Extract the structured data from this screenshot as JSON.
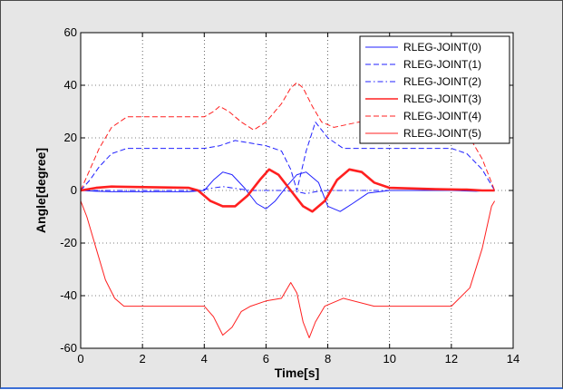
{
  "chart_data": {
    "type": "line",
    "title": "",
    "xlabel": "Time[s]",
    "ylabel": "Angle[degree]",
    "xlim": [
      0,
      14
    ],
    "ylim": [
      -60,
      60
    ],
    "xticks": [
      0,
      2,
      4,
      6,
      8,
      10,
      12,
      14
    ],
    "yticks": [
      -60,
      -40,
      -20,
      0,
      20,
      40,
      60
    ],
    "grid": true,
    "legend_position": "top-right",
    "series": [
      {
        "name": "RLEG-JOINT(0)",
        "color": "#2020ff",
        "style": "solid",
        "width": 1.0,
        "x": [
          0,
          0.5,
          1,
          3.5,
          4.0,
          4.3,
          4.6,
          4.9,
          5.3,
          5.7,
          6.0,
          6.3,
          6.7,
          7.0,
          7.3,
          7.7,
          8.0,
          8.4,
          8.8,
          9.3,
          10,
          12,
          12.8,
          13.2,
          13.4
        ],
        "y": [
          0,
          -0.3,
          -0.5,
          -0.5,
          0,
          4,
          7,
          6,
          1,
          -5,
          -7,
          -4,
          2,
          6,
          7,
          3,
          -6,
          -8,
          -5,
          -1,
          0,
          0,
          -0.3,
          0,
          0
        ]
      },
      {
        "name": "RLEG-JOINT(1)",
        "color": "#2020ff",
        "style": "dashed",
        "width": 1.0,
        "x": [
          0,
          0.3,
          0.6,
          1.0,
          1.5,
          4.0,
          4.5,
          5.0,
          5.5,
          6.0,
          6.5,
          6.8,
          7.0,
          7.3,
          7.6,
          8.0,
          8.5,
          9.0,
          12.0,
          12.5,
          13.0,
          13.4
        ],
        "y": [
          0,
          4,
          9,
          14,
          16,
          16,
          17,
          19,
          18,
          17,
          15,
          8,
          0,
          15,
          26,
          20,
          16,
          16,
          16,
          14,
          8,
          0
        ]
      },
      {
        "name": "RLEG-JOINT(2)",
        "color": "#2020ff",
        "style": "dashdot",
        "width": 1.0,
        "x": [
          0,
          0.5,
          3.8,
          4.2,
          4.6,
          5.0,
          5.5,
          6.5,
          7.0,
          7.3,
          7.6,
          8.0,
          9.0,
          13.0,
          13.4
        ],
        "y": [
          0,
          0,
          0,
          0.8,
          1.5,
          0.8,
          0,
          0,
          -0.5,
          -1.2,
          -0.5,
          0,
          0,
          0,
          0
        ]
      },
      {
        "name": "RLEG-JOINT(3)",
        "color": "#ff2020",
        "style": "solid",
        "width": 2.6,
        "x": [
          0,
          0.5,
          1,
          3.5,
          3.8,
          4.2,
          4.6,
          5.0,
          5.4,
          5.8,
          6.1,
          6.4,
          6.8,
          7.2,
          7.5,
          7.9,
          8.3,
          8.7,
          9.1,
          9.5,
          10,
          11.5,
          12.5,
          13.0,
          13.4
        ],
        "y": [
          0,
          1.0,
          1.5,
          1.0,
          0,
          -4,
          -6,
          -6,
          -2,
          4,
          8,
          6,
          0,
          -6,
          -8,
          -4,
          4,
          8,
          7,
          3,
          1,
          0.5,
          0.3,
          0,
          0
        ]
      },
      {
        "name": "RLEG-JOINT(4)",
        "color": "#ff2020",
        "style": "dashed",
        "width": 1.0,
        "x": [
          0,
          0.3,
          0.6,
          1.0,
          1.5,
          4.0,
          4.3,
          4.5,
          4.8,
          5.2,
          5.6,
          6.0,
          6.5,
          6.8,
          7.0,
          7.2,
          7.5,
          7.8,
          8.2,
          8.6,
          9.0,
          12.0,
          12.5,
          13.0,
          13.4
        ],
        "y": [
          0,
          8,
          16,
          24,
          28,
          28,
          30,
          32,
          30,
          26,
          23,
          26,
          33,
          39,
          41,
          39,
          32,
          26,
          24,
          25,
          26,
          26,
          22,
          12,
          0
        ]
      },
      {
        "name": "RLEG-JOINT(5)",
        "color": "#ff2020",
        "style": "solid-thin",
        "width": 1.0,
        "x": [
          0,
          0.2,
          0.5,
          0.8,
          1.1,
          1.4,
          4.0,
          4.3,
          4.6,
          4.9,
          5.2,
          5.5,
          6.0,
          6.5,
          6.8,
          7.0,
          7.2,
          7.4,
          7.6,
          7.9,
          8.5,
          9.5,
          12.0,
          12.6,
          13.0,
          13.3,
          13.4
        ],
        "y": [
          -4,
          -10,
          -22,
          -34,
          -41,
          -44,
          -44,
          -48,
          -55,
          -52,
          -46,
          -44,
          -42,
          -41,
          -35,
          -39,
          -50,
          -56,
          -50,
          -44,
          -41,
          -44,
          -44,
          -37,
          -22,
          -6,
          -4
        ]
      }
    ]
  }
}
